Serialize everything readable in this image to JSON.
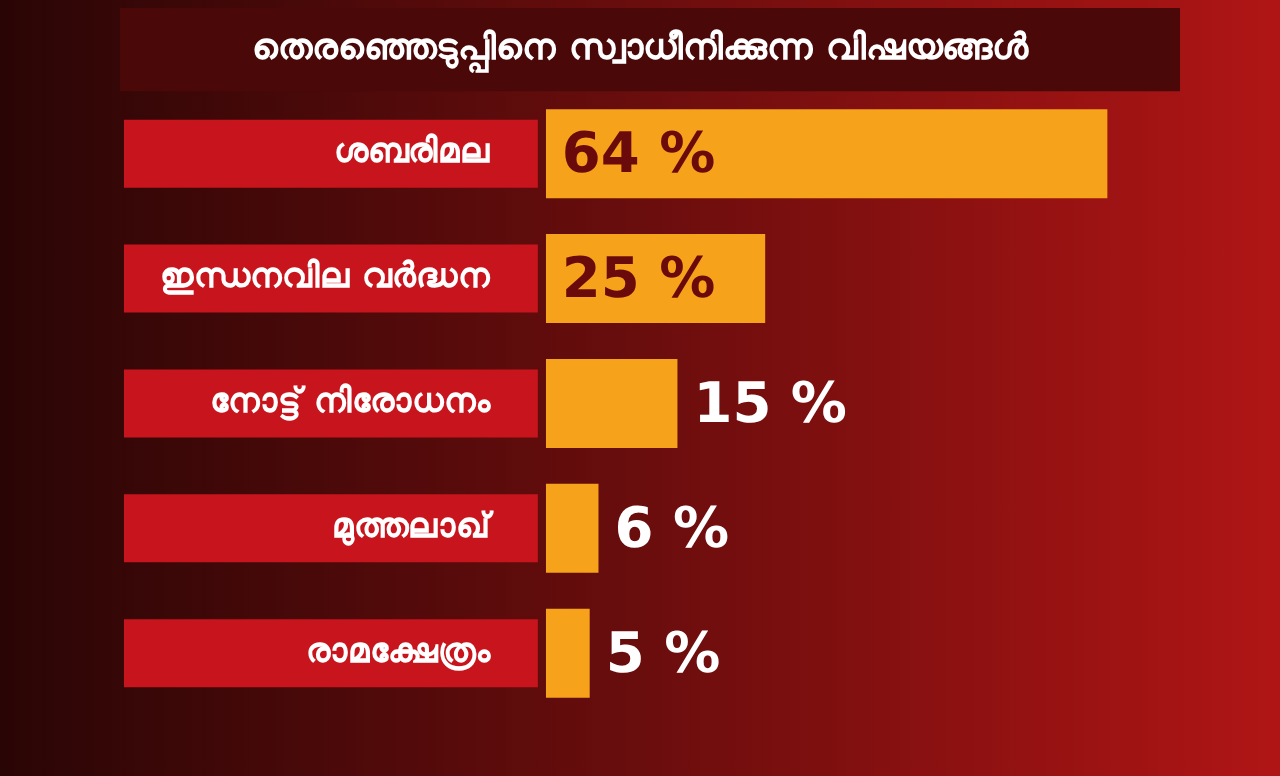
{
  "chart_data": {
    "type": "bar",
    "orientation": "horizontal",
    "title": "തെരഞ്ഞെടുപ്പിനെ സ്വാധീനിക്കുന്ന വിഷയങ്ങൾ",
    "categories": [
      "ശബരിമല",
      "ഇന്ധനവില വർദ്ധന",
      "നോട്ട് നിരോധനം",
      "മുത്തലാഖ്",
      "രാമക്ഷേത്രം"
    ],
    "values": [
      64,
      25,
      15,
      6,
      5
    ],
    "value_labels": [
      "64 %",
      "25 %",
      "15 %",
      "6 %",
      "5 %"
    ],
    "color": "#f7a21b",
    "legend": false
  }
}
